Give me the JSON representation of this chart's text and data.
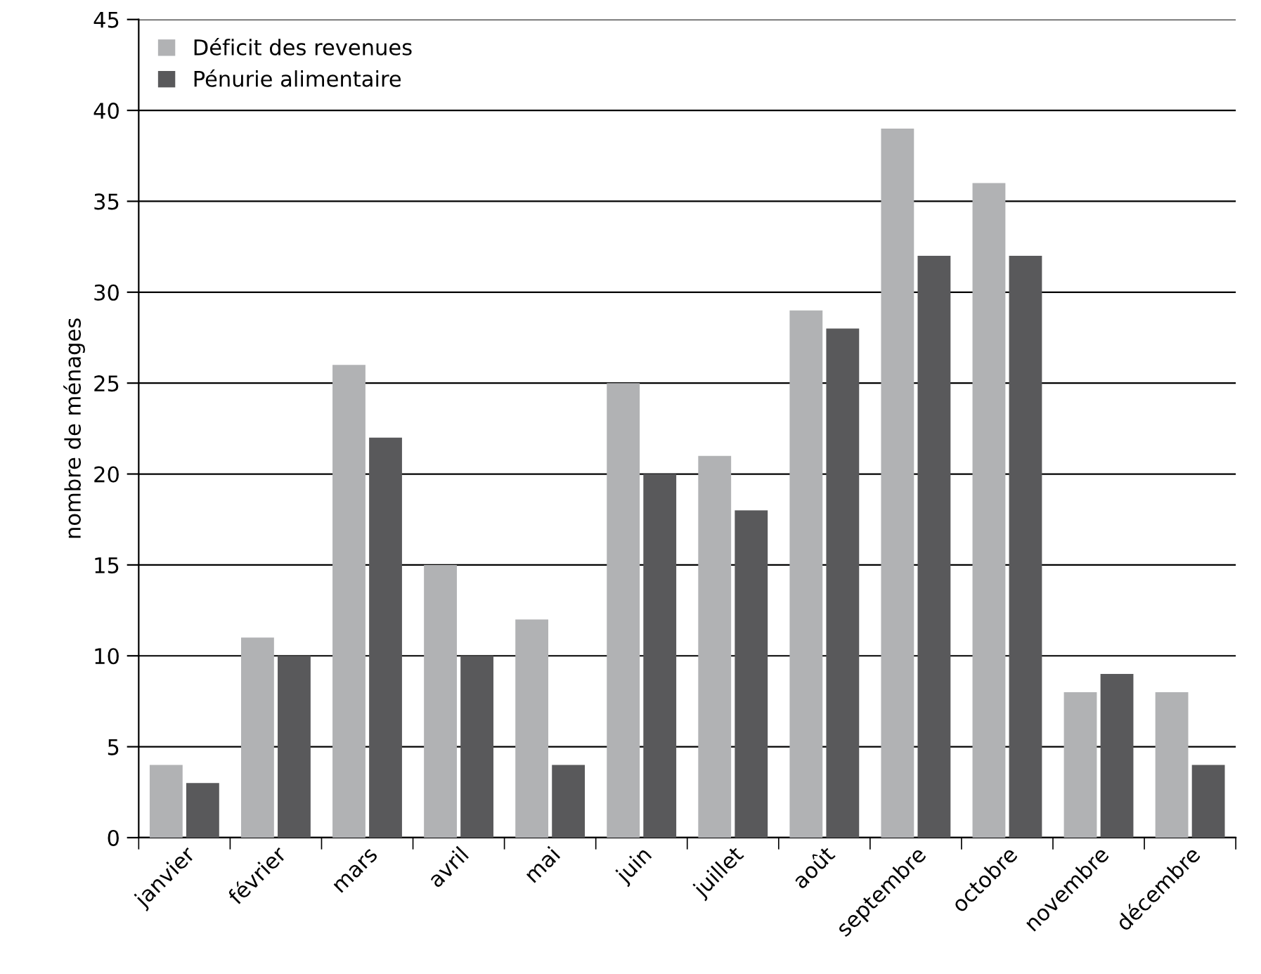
{
  "chart_data": {
    "type": "bar",
    "ylabel": "nombre de ménages",
    "categories": [
      "janvier",
      "février",
      "mars",
      "avril",
      "mai",
      "juin",
      "juillet",
      "août",
      "septembre",
      "octobre",
      "novembre",
      "décembre"
    ],
    "series": [
      {
        "name": "Déficit des revenues",
        "color": "#b1b2b4",
        "values": [
          4,
          11,
          26,
          15,
          12,
          25,
          21,
          29,
          39,
          36,
          8,
          8
        ]
      },
      {
        "name": "Pénurie alimentaire",
        "color": "#59595b",
        "values": [
          3,
          10,
          22,
          10,
          4,
          20,
          18,
          28,
          32,
          32,
          9,
          4
        ]
      }
    ],
    "ylim": [
      0,
      45
    ],
    "yticks": [
      0,
      5,
      10,
      15,
      20,
      25,
      30,
      35,
      40,
      45
    ],
    "grid": "y",
    "legend": "top left"
  }
}
